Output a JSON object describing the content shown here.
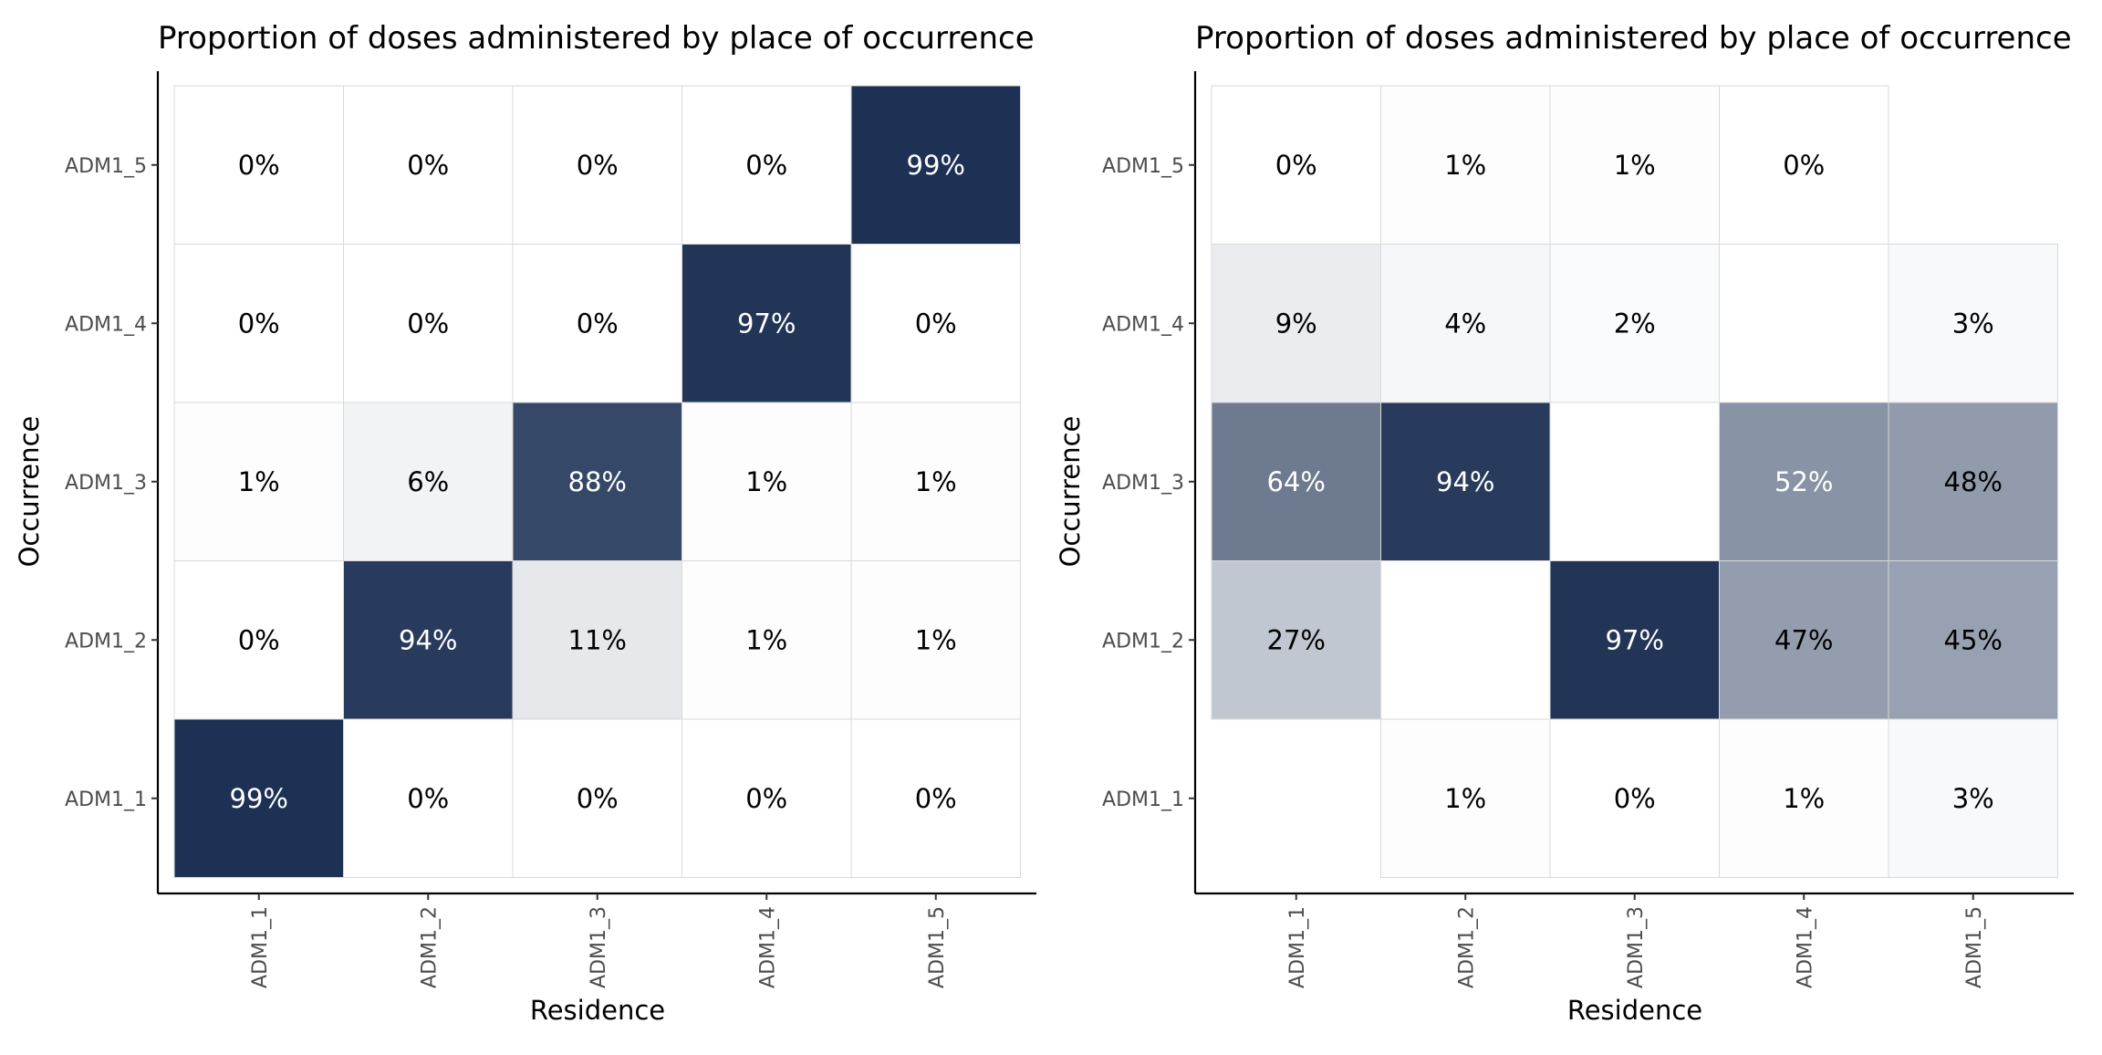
{
  "chart_data": [
    {
      "type": "heatmap",
      "title": "Proportion of doses administered by place of occurrence",
      "xlabel": "Residence",
      "ylabel": "Occurrence",
      "x_categories": [
        "ADM1_1",
        "ADM1_2",
        "ADM1_3",
        "ADM1_4",
        "ADM1_5"
      ],
      "y_categories": [
        "ADM1_1",
        "ADM1_2",
        "ADM1_3",
        "ADM1_4",
        "ADM1_5"
      ],
      "color_low": "#ffffff",
      "color_high": "#1b2f52",
      "cells": [
        {
          "x": "ADM1_1",
          "y": "ADM1_5",
          "value": 0,
          "label": "0%"
        },
        {
          "x": "ADM1_2",
          "y": "ADM1_5",
          "value": 0,
          "label": "0%"
        },
        {
          "x": "ADM1_3",
          "y": "ADM1_5",
          "value": 0,
          "label": "0%"
        },
        {
          "x": "ADM1_4",
          "y": "ADM1_5",
          "value": 0,
          "label": "0%"
        },
        {
          "x": "ADM1_5",
          "y": "ADM1_5",
          "value": 99,
          "label": "99%"
        },
        {
          "x": "ADM1_1",
          "y": "ADM1_4",
          "value": 0,
          "label": "0%"
        },
        {
          "x": "ADM1_2",
          "y": "ADM1_4",
          "value": 0,
          "label": "0%"
        },
        {
          "x": "ADM1_3",
          "y": "ADM1_4",
          "value": 0,
          "label": "0%"
        },
        {
          "x": "ADM1_4",
          "y": "ADM1_4",
          "value": 97,
          "label": "97%"
        },
        {
          "x": "ADM1_5",
          "y": "ADM1_4",
          "value": 0,
          "label": "0%"
        },
        {
          "x": "ADM1_1",
          "y": "ADM1_3",
          "value": 1,
          "label": "1%"
        },
        {
          "x": "ADM1_2",
          "y": "ADM1_3",
          "value": 6,
          "label": "6%"
        },
        {
          "x": "ADM1_3",
          "y": "ADM1_3",
          "value": 88,
          "label": "88%"
        },
        {
          "x": "ADM1_4",
          "y": "ADM1_3",
          "value": 1,
          "label": "1%"
        },
        {
          "x": "ADM1_5",
          "y": "ADM1_3",
          "value": 1,
          "label": "1%"
        },
        {
          "x": "ADM1_1",
          "y": "ADM1_2",
          "value": 0,
          "label": "0%"
        },
        {
          "x": "ADM1_2",
          "y": "ADM1_2",
          "value": 94,
          "label": "94%"
        },
        {
          "x": "ADM1_3",
          "y": "ADM1_2",
          "value": 11,
          "label": "11%"
        },
        {
          "x": "ADM1_4",
          "y": "ADM1_2",
          "value": 1,
          "label": "1%"
        },
        {
          "x": "ADM1_5",
          "y": "ADM1_2",
          "value": 1,
          "label": "1%"
        },
        {
          "x": "ADM1_1",
          "y": "ADM1_1",
          "value": 99,
          "label": "99%"
        },
        {
          "x": "ADM1_2",
          "y": "ADM1_1",
          "value": 0,
          "label": "0%"
        },
        {
          "x": "ADM1_3",
          "y": "ADM1_1",
          "value": 0,
          "label": "0%"
        },
        {
          "x": "ADM1_4",
          "y": "ADM1_1",
          "value": 0,
          "label": "0%"
        },
        {
          "x": "ADM1_5",
          "y": "ADM1_1",
          "value": 0,
          "label": "0%"
        }
      ]
    },
    {
      "type": "heatmap",
      "title": "Proportion of doses administered by place of occurrence",
      "xlabel": "Residence",
      "ylabel": "Occurrence",
      "x_categories": [
        "ADM1_1",
        "ADM1_2",
        "ADM1_3",
        "ADM1_4",
        "ADM1_5"
      ],
      "y_categories": [
        "ADM1_1",
        "ADM1_2",
        "ADM1_3",
        "ADM1_4",
        "ADM1_5"
      ],
      "color_low": "#ffffff",
      "color_high": "#1b2f52",
      "cells": [
        {
          "x": "ADM1_1",
          "y": "ADM1_5",
          "value": 0,
          "label": "0%"
        },
        {
          "x": "ADM1_2",
          "y": "ADM1_5",
          "value": 1,
          "label": "1%"
        },
        {
          "x": "ADM1_3",
          "y": "ADM1_5",
          "value": 1,
          "label": "1%"
        },
        {
          "x": "ADM1_4",
          "y": "ADM1_5",
          "value": 0,
          "label": "0%"
        },
        {
          "x": "ADM1_1",
          "y": "ADM1_4",
          "value": 9,
          "label": "9%"
        },
        {
          "x": "ADM1_2",
          "y": "ADM1_4",
          "value": 4,
          "label": "4%"
        },
        {
          "x": "ADM1_3",
          "y": "ADM1_4",
          "value": 2,
          "label": "2%"
        },
        {
          "x": "ADM1_5",
          "y": "ADM1_4",
          "value": 3,
          "label": "3%"
        },
        {
          "x": "ADM1_1",
          "y": "ADM1_3",
          "value": 64,
          "label": "64%"
        },
        {
          "x": "ADM1_2",
          "y": "ADM1_3",
          "value": 94,
          "label": "94%"
        },
        {
          "x": "ADM1_4",
          "y": "ADM1_3",
          "value": 52,
          "label": "52%"
        },
        {
          "x": "ADM1_5",
          "y": "ADM1_3",
          "value": 48,
          "label": "48%"
        },
        {
          "x": "ADM1_1",
          "y": "ADM1_2",
          "value": 27,
          "label": "27%"
        },
        {
          "x": "ADM1_3",
          "y": "ADM1_2",
          "value": 97,
          "label": "97%"
        },
        {
          "x": "ADM1_4",
          "y": "ADM1_2",
          "value": 47,
          "label": "47%"
        },
        {
          "x": "ADM1_5",
          "y": "ADM1_2",
          "value": 45,
          "label": "45%"
        },
        {
          "x": "ADM1_2",
          "y": "ADM1_1",
          "value": 1,
          "label": "1%"
        },
        {
          "x": "ADM1_3",
          "y": "ADM1_1",
          "value": 0,
          "label": "0%"
        },
        {
          "x": "ADM1_4",
          "y": "ADM1_1",
          "value": 1,
          "label": "1%"
        },
        {
          "x": "ADM1_5",
          "y": "ADM1_1",
          "value": 3,
          "label": "3%"
        }
      ]
    }
  ]
}
